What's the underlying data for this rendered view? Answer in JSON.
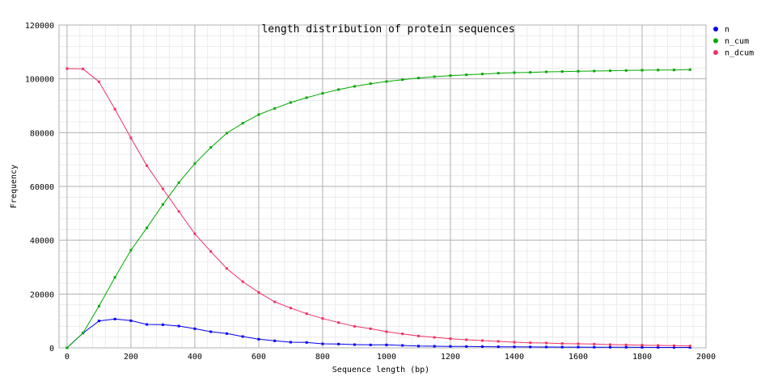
{
  "chart_data": {
    "type": "line",
    "title": "length distribution of protein sequences",
    "xlabel": "Sequence length (bp)",
    "ylabel": "Frequency",
    "xlim": [
      -25,
      2000
    ],
    "ylim": [
      0,
      120000
    ],
    "x_ticks": [
      0,
      200,
      400,
      600,
      800,
      1000,
      1200,
      1400,
      1600,
      1800,
      2000
    ],
    "x_tick_labels": [
      "0",
      "200",
      "400",
      "600",
      "800",
      "1000",
      "1200",
      "1400",
      "1600",
      "1800",
      "2000"
    ],
    "y_ticks": [
      0,
      20000,
      40000,
      60000,
      80000,
      100000,
      120000
    ],
    "y_tick_labels": [
      "0",
      "20000",
      "40000",
      "60000",
      "80000",
      "100000",
      "120000"
    ],
    "grid": true,
    "legend_position": "right",
    "x": [
      0,
      50,
      100,
      150,
      200,
      250,
      300,
      350,
      400,
      450,
      500,
      550,
      600,
      650,
      700,
      750,
      800,
      850,
      900,
      950,
      1000,
      1050,
      1100,
      1150,
      1200,
      1250,
      1300,
      1350,
      1400,
      1450,
      1500,
      1550,
      1600,
      1650,
      1700,
      1750,
      1800,
      1850,
      1900,
      1950
    ],
    "series": [
      {
        "name": "n",
        "color": "#0000ee",
        "values": [
          0,
          5500,
          10000,
          10700,
          10100,
          8700,
          8600,
          8100,
          7100,
          6000,
          5300,
          4200,
          3200,
          2600,
          2100,
          2000,
          1500,
          1400,
          1200,
          1100,
          1100,
          900,
          650,
          600,
          550,
          500,
          450,
          400,
          350,
          330,
          300,
          280,
          260,
          240,
          220,
          200,
          180,
          160,
          150,
          140
        ]
      },
      {
        "name": "n_cum",
        "color": "#00aa00",
        "values": [
          0,
          5500,
          15500,
          26200,
          36300,
          44600,
          53300,
          61400,
          68500,
          74500,
          79800,
          83500,
          86700,
          89000,
          91200,
          93000,
          94600,
          96000,
          97200,
          98200,
          99000,
          99700,
          100300,
          100800,
          101200,
          101500,
          101800,
          102100,
          102300,
          102400,
          102600,
          102700,
          102800,
          102900,
          103000,
          103100,
          103200,
          103250,
          103300,
          103400
        ]
      },
      {
        "name": "n_dcum",
        "color": "#ee3366",
        "values": [
          103800,
          103700,
          98900,
          88700,
          78000,
          67700,
          59100,
          50700,
          42400,
          35800,
          29500,
          24600,
          20600,
          17100,
          14800,
          12700,
          10900,
          9400,
          8000,
          7100,
          6000,
          5200,
          4400,
          3900,
          3400,
          3000,
          2700,
          2400,
          2100,
          1900,
          1800,
          1600,
          1500,
          1400,
          1200,
          1100,
          1000,
          900,
          800,
          700
        ]
      }
    ]
  }
}
